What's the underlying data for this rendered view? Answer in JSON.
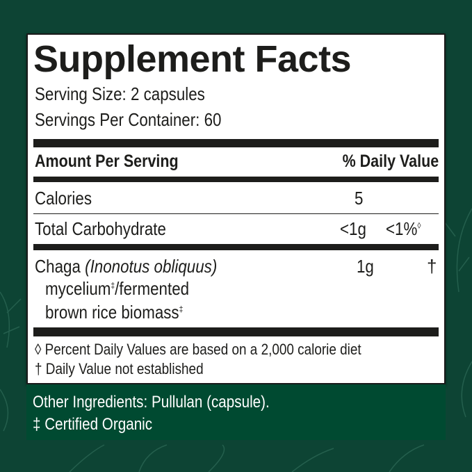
{
  "colors": {
    "background": "#0d4434",
    "panel": "#ffffff",
    "ink": "#1d1d1b",
    "ingredients_box": "#004a31"
  },
  "title": "Supplement Facts",
  "serving_size": "Serving Size: 2 capsules",
  "servings_per_container": "Servings Per Container: 60",
  "header": {
    "amount": "Amount Per Serving",
    "dv": "% Daily Value"
  },
  "rows": [
    {
      "name": "Calories",
      "amount": "5",
      "dv": ""
    },
    {
      "name": "Total Carbohydrate",
      "amount": "<1g",
      "dv": "<1%",
      "dv_mark": "◊"
    },
    {
      "name": "Chaga",
      "name_italic": "(Inonotus obliquus)",
      "line2": "mycelium",
      "line2_mark": "‡",
      "line2_rest": "/fermented",
      "line3": "brown rice biomass",
      "line3_mark": "‡",
      "amount": "1g",
      "dv": "†"
    }
  ],
  "footnotes": [
    "◊ Percent Daily Values are based on a 2,000 calorie diet",
    "† Daily Value not established"
  ],
  "other_ingredients": "Other Ingredients: Pullulan (capsule).",
  "organic_note": "‡ Certified Organic"
}
